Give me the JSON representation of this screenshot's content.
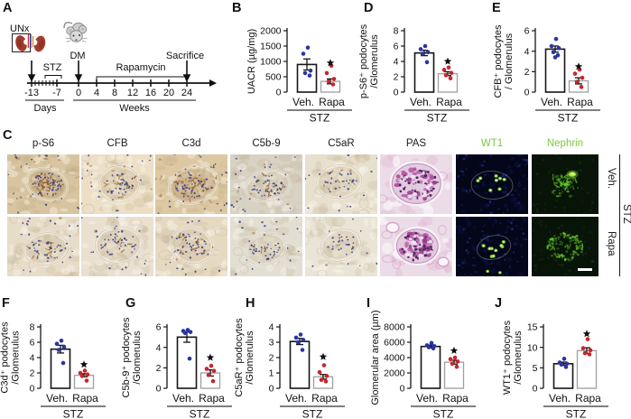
{
  "panels": {
    "a": "A",
    "b": "B",
    "c": "C",
    "d": "D",
    "e": "E",
    "f": "F",
    "g": "G",
    "h": "H",
    "i": "I",
    "j": "J"
  },
  "panel_a": {
    "unx": "UNx",
    "dm": "DM",
    "stz": "STZ",
    "rapamycin": "Rapamycin",
    "sacrifice": "Sacrifice",
    "days": "Days",
    "weeks": "Weeks",
    "day_ticks": [
      "-13",
      "-7"
    ],
    "week_ticks": [
      "0",
      "4",
      "8",
      "12",
      "16",
      "20",
      "24"
    ],
    "icons": {
      "kidney": "kidney-icon",
      "mouse": "mouse-icon"
    }
  },
  "panel_c": {
    "row_labels": [
      "Veh.",
      "Rapa"
    ],
    "group_label": "STZ",
    "fluoro_label_color": "#7ac943",
    "columns": [
      {
        "label": "p-S6",
        "type": "ihc",
        "label_color": "#1a1a1a",
        "cells": [
          {
            "bg": "#d8c5a0",
            "brown": 1,
            "nuclei": 70,
            "wash": 1
          },
          {
            "bg": "#e7dcc8",
            "brown": 0.3,
            "nuclei": 56,
            "wash": 0
          }
        ]
      },
      {
        "label": "CFB",
        "type": "ihc",
        "label_color": "#1a1a1a",
        "cells": [
          {
            "bg": "#ecdfc6",
            "brown": 0.5,
            "nuclei": 52,
            "wash": 0
          },
          {
            "bg": "#eae0d0",
            "brown": 0.2,
            "nuclei": 54,
            "wash": 0
          }
        ]
      },
      {
        "label": "C3d",
        "type": "ihc",
        "label_color": "#1a1a1a",
        "cells": [
          {
            "bg": "#dcc8a2",
            "brown": 0.9,
            "nuclei": 64,
            "wash": 1
          },
          {
            "bg": "#e6d9c2",
            "brown": 0.3,
            "nuclei": 52,
            "wash": 0
          }
        ]
      },
      {
        "label": "C5b-9",
        "type": "ihc",
        "label_color": "#1a1a1a",
        "cells": [
          {
            "bg": "#d8d2c4",
            "brown": 0.35,
            "nuclei": 58,
            "wash": 0
          },
          {
            "bg": "#e2ded2",
            "brown": 0.12,
            "nuclei": 50,
            "wash": 0
          }
        ]
      },
      {
        "label": "C5aR",
        "type": "ihc",
        "label_color": "#1a1a1a",
        "cells": [
          {
            "bg": "#e8e0ce",
            "brown": 0.15,
            "nuclei": 38,
            "wash": 0
          },
          {
            "bg": "#eae4d6",
            "brown": 0.08,
            "nuclei": 34,
            "wash": 0
          }
        ]
      },
      {
        "label": "PAS",
        "type": "pas",
        "label_color": "#1a1a1a",
        "cells": [
          {
            "size": 1
          },
          {
            "size": 0.85
          }
        ]
      },
      {
        "label": "WT1",
        "type": "wt1",
        "label_color": "#7ac943",
        "cells": [
          {
            "dots": 8,
            "edge_dots": 0
          },
          {
            "dots": 9,
            "edge_dots": 2
          }
        ]
      },
      {
        "label": "Nephrin",
        "type": "nephrin",
        "label_color": "#7ac943",
        "cells": [
          {
            "pattern": "patchy"
          },
          {
            "pattern": "ring",
            "scalebar": true
          }
        ]
      }
    ]
  },
  "chart_style": {
    "veh_dot": "#2936a0",
    "rapa_dot": "#c8252c",
    "veh_bar_stroke": "#161616",
    "rapa_bar_stroke": "#9f9f9f",
    "error_color": "#161616",
    "sig_color": "#111111"
  },
  "chart_data": [
    {
      "id": "b",
      "type": "bar",
      "panel": "B",
      "title_lines": [
        "UACR (µg/mg)"
      ],
      "ylim": [
        0,
        2000
      ],
      "yticks": [
        0,
        500,
        1000,
        1500,
        2000
      ],
      "categories": [
        "Veh.",
        "Rapa"
      ],
      "group": "STZ",
      "series": [
        {
          "name": "Veh.",
          "mean": 900,
          "sem": 180,
          "points": [
            1450,
            1250,
            700,
            620,
            540
          ]
        },
        {
          "name": "Rapa",
          "mean": 350,
          "sem": 80,
          "points": [
            860,
            620,
            430,
            350,
            250
          ],
          "sig": "*",
          "sig_y": 950
        }
      ]
    },
    {
      "id": "d",
      "type": "bar",
      "panel": "D",
      "title_lines": [
        "p-S6⁺ podocytes",
        "/Glomerulus"
      ],
      "ylim": [
        0,
        8
      ],
      "yticks": [
        0,
        2,
        4,
        6,
        8
      ],
      "categories": [
        "Veh.",
        "Rapa"
      ],
      "group": "STZ",
      "series": [
        {
          "name": "Veh.",
          "mean": 5.1,
          "sem": 0.35,
          "points": [
            6.0,
            5.6,
            5.2,
            5.0,
            3.9
          ]
        },
        {
          "name": "Rapa",
          "mean": 2.4,
          "sem": 0.25,
          "points": [
            3.2,
            2.9,
            2.5,
            2.2,
            1.8
          ],
          "sig": "*",
          "sig_y": 4.0
        }
      ]
    },
    {
      "id": "e",
      "type": "bar",
      "panel": "E",
      "title_lines": [
        "CFB⁺ podocytes",
        "/ Glomerulus"
      ],
      "ylim": [
        0,
        6
      ],
      "yticks": [
        0,
        2,
        4,
        6
      ],
      "categories": [
        "Veh.",
        "Rapa"
      ],
      "group": "STZ",
      "series": [
        {
          "name": "Veh.",
          "mean": 4.2,
          "sem": 0.3,
          "points": [
            5.2,
            4.5,
            4.3,
            3.9,
            3.6,
            3.4
          ]
        },
        {
          "name": "Rapa",
          "mean": 1.1,
          "sem": 0.3,
          "points": [
            2.2,
            1.8,
            1.4,
            1.0,
            0.5
          ],
          "sig": "*",
          "sig_y": 2.5
        }
      ]
    },
    {
      "id": "f",
      "type": "bar",
      "panel": "F",
      "title_lines": [
        "C3d⁺ podocytes",
        "/Glomerulus"
      ],
      "ylim": [
        0,
        8
      ],
      "yticks": [
        0,
        2,
        4,
        6,
        8
      ],
      "categories": [
        "Veh.",
        "Rapa"
      ],
      "group": "STZ",
      "series": [
        {
          "name": "Veh.",
          "mean": 5.1,
          "sem": 0.5,
          "points": [
            6.2,
            5.8,
            5.4,
            5.0,
            3.3
          ]
        },
        {
          "name": "Rapa",
          "mean": 1.7,
          "sem": 0.2,
          "points": [
            2.3,
            2.0,
            1.8,
            1.6,
            1.0
          ],
          "sig": "*",
          "sig_y": 3.1
        }
      ]
    },
    {
      "id": "g",
      "type": "bar",
      "panel": "G",
      "title_lines": [
        "C5b-9⁺ podocytes",
        "/Glomerulus"
      ],
      "ylim": [
        0,
        6
      ],
      "yticks": [
        0,
        2,
        4,
        6
      ],
      "categories": [
        "Veh.",
        "Rapa"
      ],
      "group": "STZ",
      "series": [
        {
          "name": "Veh.",
          "mean": 5.0,
          "sem": 0.5,
          "points": [
            5.7,
            5.6,
            5.5,
            5.4,
            2.9
          ]
        },
        {
          "name": "Rapa",
          "mean": 1.5,
          "sem": 0.3,
          "points": [
            2.2,
            1.9,
            1.7,
            1.3,
            0.7
          ],
          "sig": "*",
          "sig_y": 3.0
        }
      ]
    },
    {
      "id": "h",
      "type": "bar",
      "panel": "H",
      "title_lines": [
        "C5aR⁺ podocytes",
        "/Glomerulus"
      ],
      "ylim": [
        0,
        4
      ],
      "yticks": [
        0,
        1,
        2,
        3,
        4
      ],
      "categories": [
        "Veh.",
        "Rapa"
      ],
      "group": "STZ",
      "series": [
        {
          "name": "Veh.",
          "mean": 3.05,
          "sem": 0.2,
          "points": [
            3.5,
            3.3,
            3.15,
            3.0,
            2.5
          ]
        },
        {
          "name": "Rapa",
          "mean": 0.75,
          "sem": 0.15,
          "points": [
            1.5,
            1.05,
            0.8,
            0.55,
            0.45
          ],
          "sig": "*",
          "sig_y": 2.05
        }
      ]
    },
    {
      "id": "i",
      "type": "bar",
      "panel": "I",
      "title_lines": [
        "Glomerular area (µm)"
      ],
      "ylim": [
        0,
        8000
      ],
      "yticks": [
        0,
        2000,
        4000,
        6000,
        8000
      ],
      "categories": [
        "Veh.",
        "Rapa"
      ],
      "group": "STZ",
      "series": [
        {
          "name": "Veh.",
          "mean": 5450,
          "sem": 180,
          "points": [
            5900,
            5600,
            5500,
            5350,
            5200
          ]
        },
        {
          "name": "Rapa",
          "mean": 3400,
          "sem": 250,
          "points": [
            4000,
            3800,
            3500,
            3200,
            2800
          ],
          "sig": "*",
          "sig_y": 4900
        }
      ]
    },
    {
      "id": "j",
      "type": "bar",
      "panel": "J",
      "title_lines": [
        "WT1⁺ podocytes",
        "/Glomerulus"
      ],
      "ylim": [
        0,
        15
      ],
      "yticks": [
        0,
        5,
        10,
        15
      ],
      "categories": [
        "Veh.",
        "Rapa"
      ],
      "group": "STZ",
      "series": [
        {
          "name": "Veh.",
          "mean": 6.0,
          "sem": 0.4,
          "points": [
            7.2,
            6.3,
            6.0,
            5.8,
            5.2
          ]
        },
        {
          "name": "Rapa",
          "mean": 9.2,
          "sem": 0.7,
          "points": [
            12.0,
            9.8,
            9.3,
            8.6,
            8.3
          ],
          "sig": "*",
          "sig_y": 13.3
        }
      ]
    }
  ]
}
